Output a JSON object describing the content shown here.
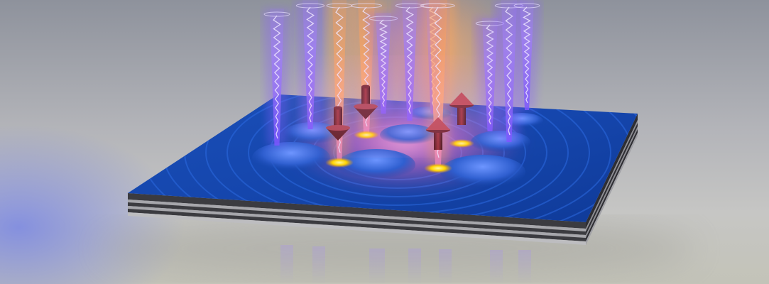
{
  "scene": {
    "subject": "quantum-simulator-illustration",
    "colors": {
      "background_top": "#9b9ea6",
      "background_mid": "#c7c7ca",
      "floor": "#bdbdb2",
      "slab_top": "#1446a8",
      "slab_top_light": "#2a6bd8",
      "slab_layer_dark": "#3b3b40",
      "slab_layer_light": "#9a9aa0",
      "beam_violet": "#8a5bff",
      "beam_core": "#d9c8ff",
      "beam_orange": "#ff9a4a",
      "glow_pink": "#ff7ac8",
      "spot_yellow": "#ffd400",
      "arrow_red": "#b0343a",
      "arrow_dark": "#5a1a1e",
      "mound_blue": "#3b6ee0"
    },
    "beams": [
      {
        "name": "beam-1"
      },
      {
        "name": "beam-2"
      },
      {
        "name": "beam-3"
      },
      {
        "name": "beam-4"
      },
      {
        "name": "beam-5"
      },
      {
        "name": "beam-6"
      },
      {
        "name": "beam-7"
      },
      {
        "name": "beam-8"
      },
      {
        "name": "beam-9"
      },
      {
        "name": "beam-10"
      },
      {
        "name": "beam-11"
      }
    ],
    "spins": [
      {
        "name": "spin-down-1",
        "direction": "down"
      },
      {
        "name": "spin-down-2",
        "direction": "down"
      },
      {
        "name": "spin-up-1",
        "direction": "up"
      },
      {
        "name": "spin-up-2",
        "direction": "up"
      }
    ],
    "wells": 4,
    "layers": 5
  }
}
